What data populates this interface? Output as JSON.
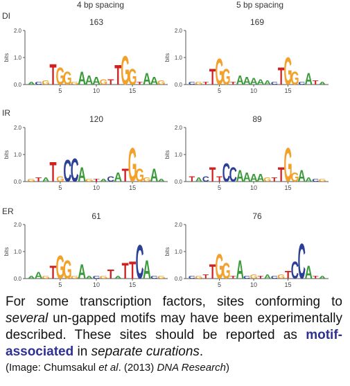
{
  "columns": [
    "4 bp spacing",
    "5 bp spacing"
  ],
  "rows": [
    "DI",
    "IR",
    "ER"
  ],
  "y_axis": {
    "label": "bits",
    "ticks": [
      "2.0",
      "1.0",
      "0.0"
    ],
    "range": [
      0,
      2
    ]
  },
  "x_ticks": [
    "5",
    "10",
    "15"
  ],
  "panels": [
    {
      "row": "DI",
      "col": "4 bp spacing",
      "count": "163",
      "consensus": [
        "",
        "",
        "",
        "T",
        "G",
        "G",
        "",
        "A",
        "A",
        "A",
        "",
        "",
        "T",
        "G",
        "G",
        "",
        "A",
        "A",
        ""
      ],
      "heights": [
        0.1,
        0.1,
        0.15,
        0.8,
        0.65,
        0.5,
        0.1,
        0.5,
        0.35,
        0.3,
        0.2,
        0.2,
        0.75,
        1.1,
        0.6,
        0.1,
        0.45,
        0.3,
        0.15
      ]
    },
    {
      "row": "DI",
      "col": "5 bp spacing",
      "count": "169",
      "consensus": [
        "",
        "",
        "",
        "T",
        "G",
        "G",
        "",
        "A",
        "A",
        "A",
        "A",
        "",
        "",
        "T",
        "G",
        "G",
        "",
        "A",
        "",
        ""
      ],
      "heights": [
        0.1,
        0.1,
        0.1,
        0.6,
        1.0,
        0.6,
        0.1,
        0.35,
        0.3,
        0.25,
        0.2,
        0.15,
        0.1,
        0.65,
        1.05,
        0.5,
        0.1,
        0.45,
        0.15,
        0.1
      ]
    },
    {
      "row": "IR",
      "col": "4 bp spacing",
      "count": "120",
      "consensus": [
        "",
        "",
        "",
        "T",
        "",
        "C",
        "C",
        "A",
        "",
        "",
        "",
        "",
        "A",
        "T",
        "G",
        "G",
        "",
        "A",
        ""
      ],
      "heights": [
        0.1,
        0.15,
        0.15,
        0.75,
        0.2,
        0.85,
        0.9,
        0.55,
        0.1,
        0.1,
        0.1,
        0.2,
        0.35,
        0.5,
        1.3,
        0.5,
        0.15,
        0.5,
        0.1
      ]
    },
    {
      "row": "IR",
      "col": "5 bp spacing",
      "count": "89",
      "consensus": [
        "",
        "",
        "",
        "T",
        "",
        "C",
        "C",
        "A",
        "A",
        "A",
        "A",
        "",
        "",
        "T",
        "G",
        "G",
        "A",
        "",
        "",
        ""
      ],
      "heights": [
        0.2,
        0.15,
        0.2,
        0.55,
        0.2,
        0.7,
        0.55,
        0.45,
        0.35,
        0.3,
        0.3,
        0.15,
        0.15,
        0.55,
        1.3,
        0.35,
        0.45,
        0.15,
        0.1,
        0.1
      ]
    },
    {
      "row": "ER",
      "col": "4 bp spacing",
      "count": "61",
      "consensus": [
        "",
        "A",
        "",
        "T",
        "G",
        "G",
        "",
        "A",
        "",
        "",
        "",
        "T",
        "",
        "T",
        "T",
        "C",
        "A",
        "",
        ""
      ],
      "heights": [
        0.1,
        0.25,
        0.1,
        0.5,
        0.9,
        0.7,
        0.1,
        0.55,
        0.1,
        0.1,
        0.1,
        0.35,
        0.1,
        0.6,
        0.65,
        1.3,
        0.7,
        0.1,
        0.1
      ]
    },
    {
      "row": "ER",
      "col": "5 bp spacing",
      "count": "76",
      "consensus": [
        "",
        "",
        "",
        "T",
        "G",
        "G",
        "",
        "A",
        "",
        "",
        "",
        "",
        "",
        "",
        "T",
        "C",
        "C",
        "A",
        "",
        ""
      ],
      "heights": [
        0.1,
        0.1,
        0.15,
        0.55,
        0.95,
        0.6,
        0.1,
        0.7,
        0.1,
        0.15,
        0.1,
        0.15,
        0.1,
        0.15,
        0.3,
        0.65,
        1.35,
        0.5,
        0.1,
        0.1
      ]
    }
  ],
  "nucleotide_colors": {
    "A": "#3a9a3a",
    "C": "#2b3f95",
    "G": "#f2a12a",
    "T": "#d02020",
    "small": "#c8a040"
  },
  "caption": {
    "part1": "For some transcription factors, sites conforming to ",
    "part2_italic": "several",
    "part3": " un-gapped motifs may have been experimentally described. These sites should be reported as ",
    "part4_emphasis": "motif-associated",
    "part5": " in ",
    "part6_italic": "separate curations",
    "part7": "."
  },
  "credit": {
    "prefix": "(Image: Chumsakul ",
    "italic1": "et al",
    "middle": ". (2013) ",
    "italic2": "DNA Research",
    "suffix": ")"
  }
}
